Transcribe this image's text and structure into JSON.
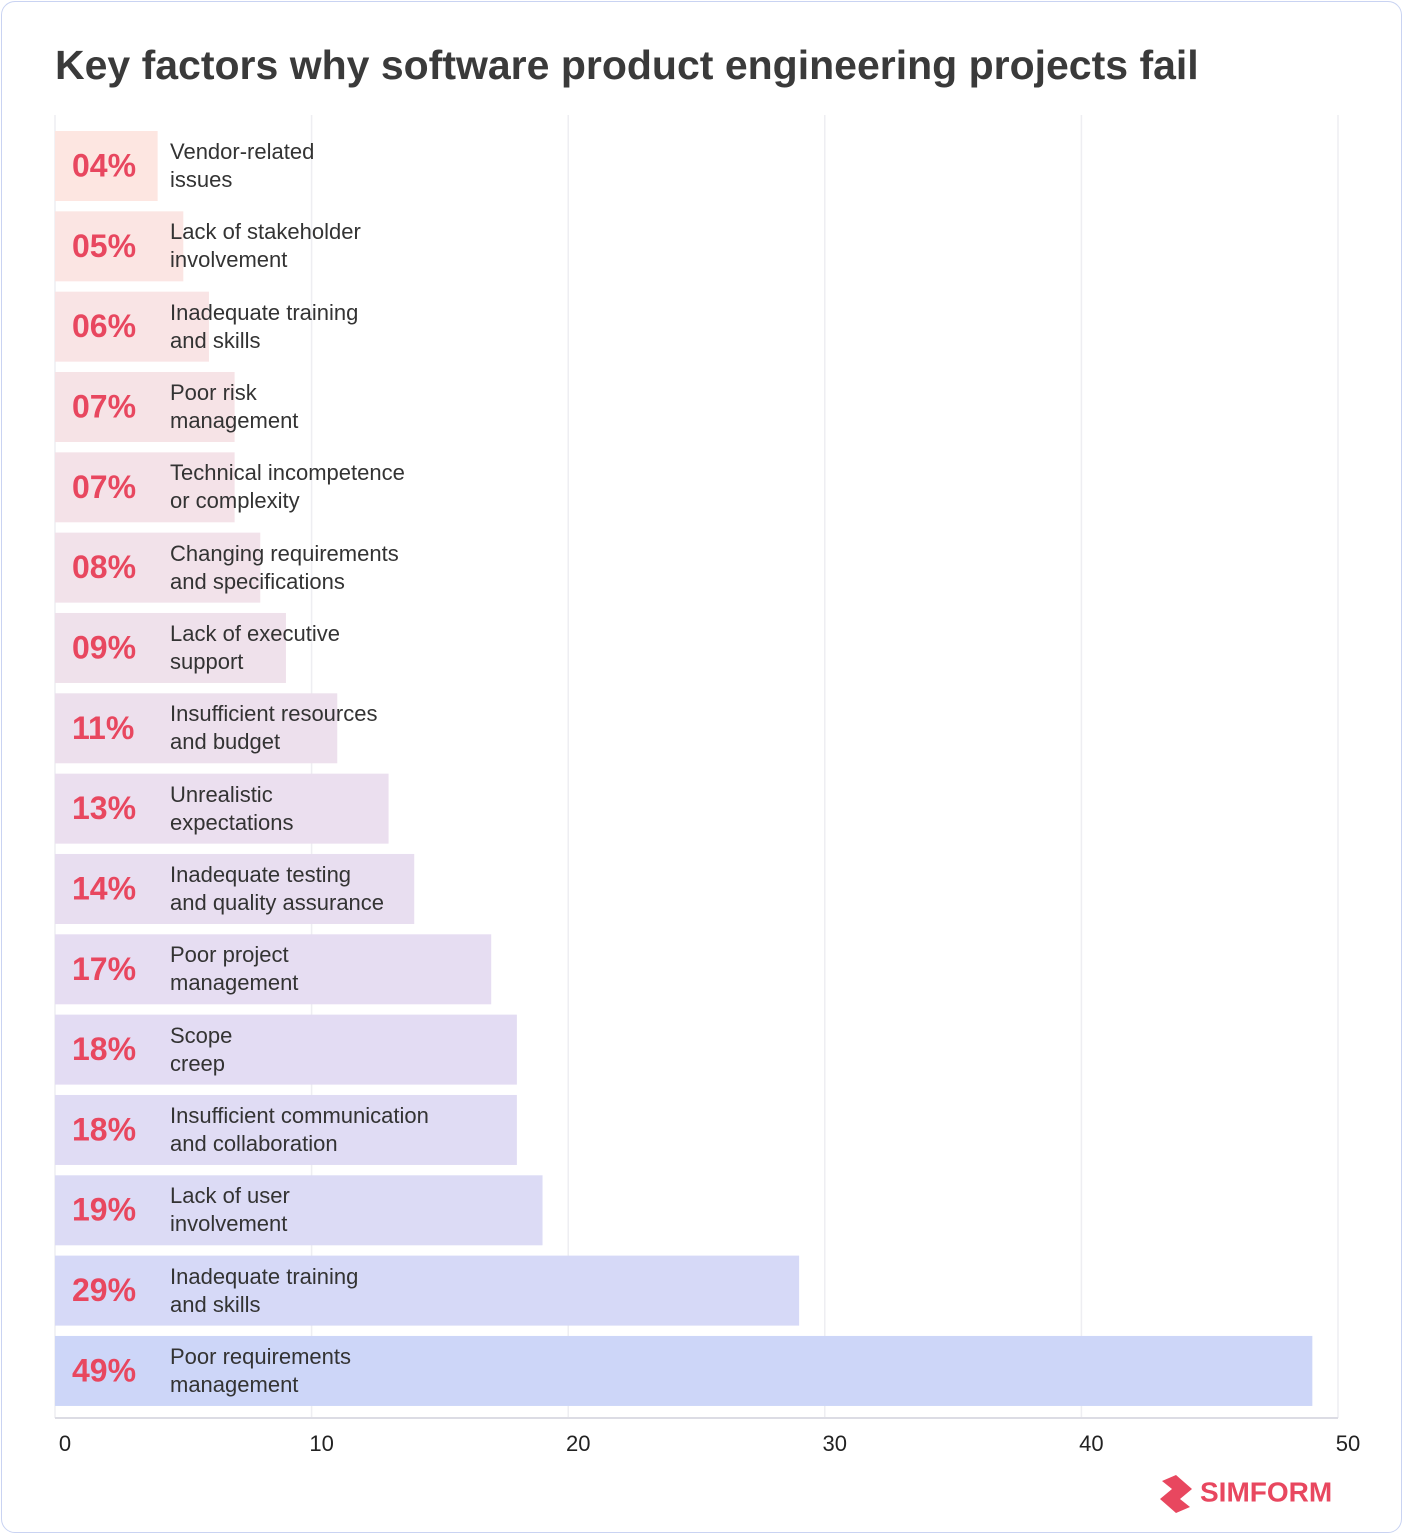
{
  "chart_data": {
    "type": "hbar",
    "title": "Key factors why software product engineering projects fail",
    "categories": [
      "Vendor-related\nissues",
      "Lack of stakeholder\ninvolvement",
      "Inadequate training\nand skills",
      "Poor risk\nmanagement",
      "Technical incompetence\nor complexity",
      "Changing requirements\nand specifications",
      "Lack of executive\nsupport",
      "Insufficient resources\nand budget",
      "Unrealistic\nexpectations",
      "Inadequate testing\nand quality assurance",
      "Poor project\nmanagement",
      "Scope\ncreep",
      "Insufficient communication\nand collaboration",
      "Lack of user\ninvolvement",
      "Inadequate training\nand skills",
      "Poor requirements\nmanagement"
    ],
    "values": [
      4,
      5,
      6,
      7,
      7,
      8,
      9,
      11,
      13,
      14,
      17,
      18,
      18,
      19,
      29,
      49
    ],
    "value_labels": [
      "04%",
      "05%",
      "06%",
      "07%",
      "07%",
      "08%",
      "09%",
      "11%",
      "13%",
      "14%",
      "17%",
      "18%",
      "18%",
      "19%",
      "29%",
      "49%"
    ],
    "colors": [
      "#fde6e1",
      "#fbe5e3",
      "#f9e4e5",
      "#f6e3e6",
      "#f4e2e8",
      "#f2e2ea",
      "#efe1eb",
      "#ede0ed",
      "#ebdfef",
      "#e8def0",
      "#e6ddf2",
      "#e3dcf3",
      "#e0dcf4",
      "#dcdbf5",
      "#d6d9f7",
      "#cdd6f8"
    ],
    "value_label_color": "#e8475f",
    "xlim": [
      0,
      50
    ],
    "xticks": [
      0,
      10,
      20,
      30,
      40,
      50
    ],
    "grid": true
  },
  "logo": "SIMFORM"
}
